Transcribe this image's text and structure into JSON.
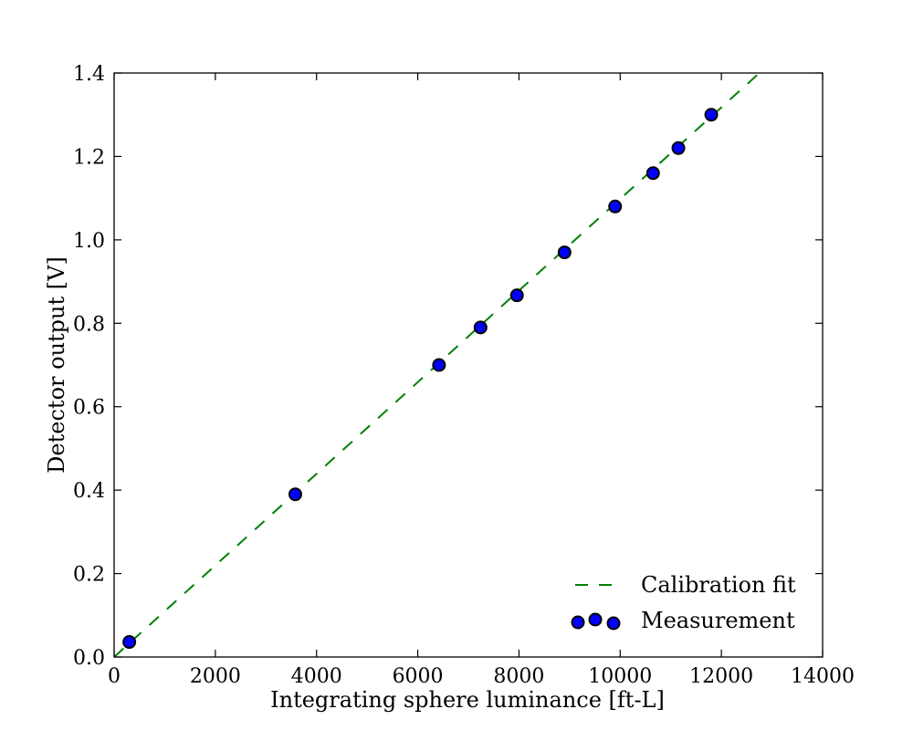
{
  "chart_data": {
    "type": "scatter",
    "title": "",
    "xlabel": "Integrating sphere luminance [ft-L]",
    "ylabel": "Detector output [V]",
    "xlim": [
      0,
      14000
    ],
    "ylim": [
      0.0,
      1.4
    ],
    "xticks": [
      0,
      2000,
      4000,
      6000,
      8000,
      10000,
      12000,
      14000
    ],
    "yticks": [
      0.0,
      0.2,
      0.4,
      0.6,
      0.8,
      1.0,
      1.2,
      1.4
    ],
    "xtick_labels": [
      "0",
      "2000",
      "4000",
      "6000",
      "8000",
      "10000",
      "12000",
      "14000"
    ],
    "ytick_labels": [
      "0.0",
      "0.2",
      "0.4",
      "0.6",
      "0.8",
      "1.0",
      "1.2",
      "1.4"
    ],
    "grid": false,
    "legend_position": "lower-right",
    "series": [
      {
        "name": "Calibration fit",
        "type": "line",
        "style": "dashed",
        "color": "#008000",
        "x": [
          0,
          12750
        ],
        "y": [
          0.0,
          1.4
        ]
      },
      {
        "name": "Measurement",
        "type": "scatter",
        "color": "#0000ff",
        "edgecolor": "#000000",
        "x": [
          300,
          3580,
          6420,
          7240,
          7960,
          8900,
          9900,
          10650,
          11150,
          11800
        ],
        "y": [
          0.036,
          0.39,
          0.7,
          0.79,
          0.867,
          0.97,
          1.08,
          1.16,
          1.22,
          1.3
        ]
      }
    ]
  }
}
